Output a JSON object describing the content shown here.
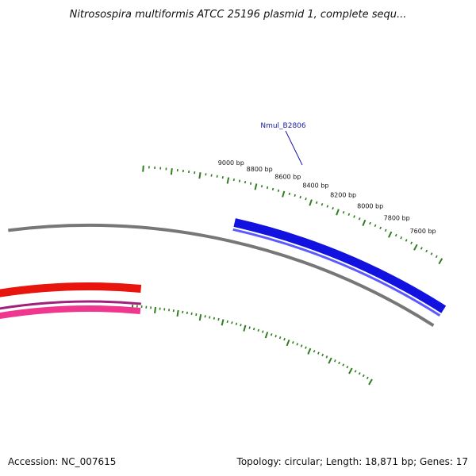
{
  "map": {
    "title": "Nitrosospira multiformis ATCC 25196 plasmid 1, complete sequ...",
    "accession_text": "Accession: NC_007615",
    "summary_text": "Topology: circular; Length: 18,871 bp; Genes: 17"
  },
  "ruler": {
    "labels": [
      {
        "bp": 7600,
        "text": "7600 bp"
      },
      {
        "bp": 7800,
        "text": "7800 bp"
      },
      {
        "bp": 8000,
        "text": "8000 bp"
      },
      {
        "bp": 8200,
        "text": "8200 bp"
      },
      {
        "bp": 8400,
        "text": "8400 bp"
      },
      {
        "bp": 8600,
        "text": "8600 bp"
      },
      {
        "bp": 8800,
        "text": "8800 bp"
      },
      {
        "bp": 9000,
        "text": "9000 bp"
      }
    ]
  },
  "features": [
    {
      "name": "Nmul_B2806",
      "label": "Nmul_B2806",
      "strand": "+",
      "color": "#1212e0"
    }
  ],
  "colors": {
    "tick": "#2e7d1e",
    "gene_forward": "#1212e0",
    "gene_forward_highlight": "#5a5aff",
    "backbone": "#777777",
    "gene_red": "#e8140e",
    "gene_pink": "#f0378f",
    "gene_purple": "#a0207a",
    "label_blue": "#1a1aa6"
  }
}
